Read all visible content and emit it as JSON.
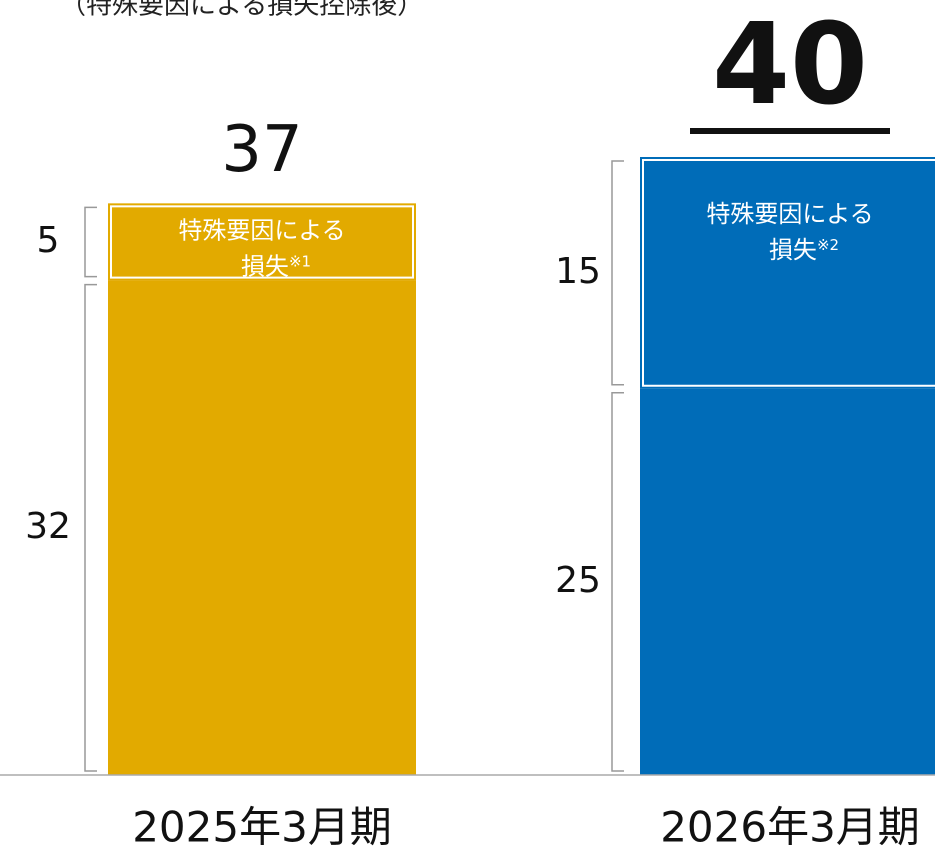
{
  "chart_data": {
    "type": "stacked_bar",
    "subtitle": "（特殊要因による損失控除後）",
    "categories": [
      "2025年3月期",
      "2026年3月期"
    ],
    "colors": [
      "#e2aa00",
      "#006cb8"
    ],
    "series": [
      {
        "values": [
          32,
          25
        ]
      },
      {
        "values": [
          5,
          15
        ]
      }
    ],
    "totals": [
      37,
      40
    ],
    "segment_notes": [
      {
        "line1": "特殊要因による",
        "line2": "損失",
        "note": "※1"
      },
      {
        "line1": "特殊要因による",
        "line2": "損失",
        "note": "※2"
      }
    ],
    "ylim": [
      0,
      40
    ]
  }
}
